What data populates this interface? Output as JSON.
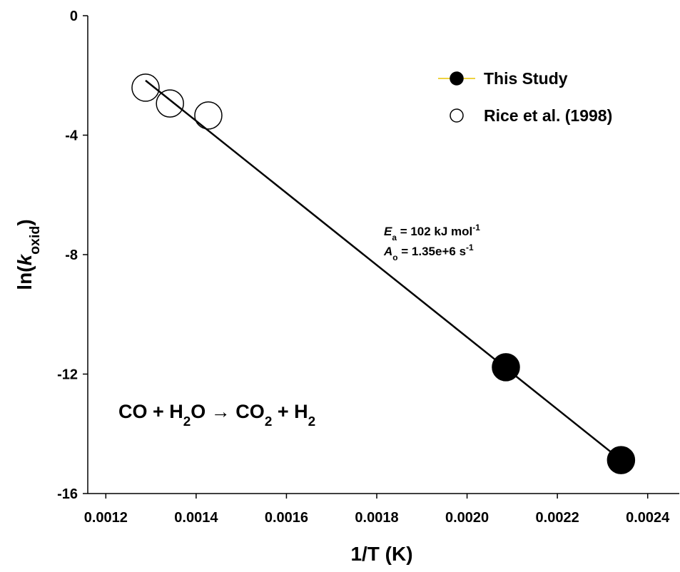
{
  "chart_data": {
    "type": "scatter",
    "xlim": [
      0.00116,
      0.00247
    ],
    "ylim": [
      -16,
      0
    ],
    "xticks": [
      0.0012,
      0.0014,
      0.0016,
      0.0018,
      {
        "value": 0.002,
        "label": "0.0020"
      },
      0.0022,
      0.0024
    ],
    "yticks": [
      0,
      -4,
      -8,
      -12,
      -16
    ],
    "xlabel": "1/T (K)",
    "ylabel": [
      {
        "text": "ln(",
        "style": "normal"
      },
      {
        "text": "k",
        "style": "italic"
      },
      {
        "text": "oxid",
        "style": "sub"
      },
      {
        "text": ")",
        "style": "normal"
      }
    ],
    "series": [
      {
        "name": "This Study",
        "color": "#000000",
        "filled": true,
        "x": [
          0.002086,
          0.002341
        ],
        "values": [
          -11.77,
          -14.88
        ]
      },
      {
        "name": "Rice et al. (1998)",
        "color": "#000000",
        "filled": false,
        "x": [
          0.001288,
          0.001342,
          0.001427
        ],
        "values": [
          -2.41,
          -2.94,
          -3.34
        ]
      }
    ],
    "fit_line": {
      "color": "#000000",
      "x": [
        0.001288,
        0.002341
      ],
      "values": [
        -2.17,
        -14.88
      ]
    },
    "legend": "upper right",
    "annotations": [
      [
        {
          "text": "E",
          "style": "italic"
        },
        {
          "text": "a",
          "style": "sub"
        },
        {
          "text": " = 102 kJ mol",
          "style": "normal"
        },
        {
          "text": "-1",
          "style": "sup"
        }
      ],
      [
        {
          "text": "A",
          "style": "italic"
        },
        {
          "text": "o",
          "style": "sub"
        },
        {
          "text": " = 1.35e+6 s",
          "style": "normal"
        },
        {
          "text": "-1",
          "style": "sup"
        }
      ],
      [
        {
          "text": "CO + H",
          "style": "normal"
        },
        {
          "text": "2",
          "style": "sub"
        },
        {
          "text": "O → CO",
          "style": "normal"
        },
        {
          "text": "2",
          "style": "sub"
        },
        {
          "text": " + H",
          "style": "normal"
        },
        {
          "text": "2",
          "style": "sub"
        }
      ]
    ]
  }
}
